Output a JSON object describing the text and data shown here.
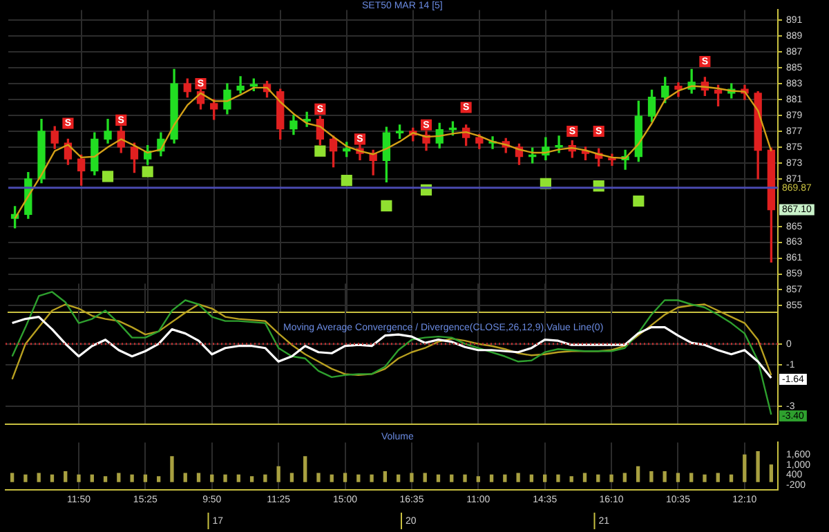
{
  "chart_data": [
    {
      "type": "candlestick",
      "title": "SET50 MAR 14 [5]",
      "categories": [
        null,
        null,
        null,
        null,
        null,
        null,
        null,
        null,
        null,
        null,
        null,
        null,
        null,
        null,
        null,
        null,
        null,
        null,
        null,
        null,
        null,
        null,
        null,
        null,
        null,
        null,
        null,
        null,
        null,
        null,
        null,
        null,
        null,
        null,
        null,
        null,
        null,
        null,
        null,
        null,
        null,
        null,
        null,
        null,
        null,
        null,
        null,
        null,
        null,
        null,
        null,
        null,
        null,
        null,
        null,
        null,
        null,
        null
      ],
      "ohlc": [
        [
          866,
          867.5,
          864.8,
          866.5
        ],
        [
          866.5,
          871.8,
          866,
          871
        ],
        [
          871,
          878.5,
          870.5,
          877
        ],
        [
          877,
          877.6,
          874.8,
          875.5
        ],
        [
          875.5,
          876,
          872.8,
          873.5
        ],
        [
          873.5,
          874,
          870.2,
          872
        ],
        [
          872,
          876.8,
          871.5,
          876
        ],
        [
          876,
          878.5,
          875.5,
          877
        ],
        [
          877,
          877.6,
          874.3,
          875
        ],
        [
          875,
          875.5,
          871.8,
          873.5
        ],
        [
          873.5,
          875.2,
          872.8,
          874.5
        ],
        [
          874.5,
          876.8,
          873.9,
          876
        ],
        [
          876,
          884.8,
          875.5,
          883
        ],
        [
          883,
          883.6,
          881.3,
          882
        ],
        [
          882,
          882.5,
          879.8,
          880.5
        ],
        [
          880.5,
          881,
          878.5,
          879.8
        ],
        [
          879.8,
          883,
          879.2,
          882.2
        ],
        [
          882.2,
          883.9,
          881.8,
          882.7
        ],
        [
          882.7,
          883.6,
          882.1,
          882.9
        ],
        [
          882.9,
          883.3,
          881.3,
          882
        ],
        [
          882,
          882.3,
          876,
          877.3
        ],
        [
          877.3,
          879,
          876.6,
          878.3
        ],
        [
          878.3,
          879.4,
          877.6,
          878.5
        ],
        [
          878.5,
          878.9,
          875.3,
          876
        ],
        [
          876,
          876.4,
          872.5,
          874.5
        ],
        [
          874.5,
          875.6,
          873.8,
          874.8
        ],
        [
          874.8,
          875.4,
          873.4,
          874.2
        ],
        [
          874.2,
          874.6,
          871.5,
          873.3
        ],
        [
          873.3,
          877.5,
          870.6,
          876.8
        ],
        [
          876.8,
          877.8,
          876.1,
          877
        ],
        [
          877,
          877.4,
          875.8,
          876.5
        ],
        [
          876.5,
          877,
          874.6,
          875.5
        ],
        [
          875.5,
          878,
          874.9,
          877.2
        ],
        [
          877.2,
          878.2,
          876.5,
          877.4
        ],
        [
          877.4,
          877.8,
          875.2,
          876.2
        ],
        [
          876.2,
          876.6,
          874.8,
          875.5
        ],
        [
          875.5,
          876.3,
          874.8,
          875.7
        ],
        [
          875.7,
          876.1,
          874.3,
          875
        ],
        [
          875,
          875.4,
          872.8,
          873.8
        ],
        [
          873.8,
          874.9,
          873,
          874
        ],
        [
          874,
          876.2,
          873.4,
          875
        ],
        [
          875,
          876.4,
          874.3,
          875.2
        ],
        [
          875.2,
          875.8,
          873.7,
          874.5
        ],
        [
          874.5,
          875,
          873.4,
          874.2
        ],
        [
          874.2,
          874.8,
          872.6,
          873.6
        ],
        [
          873.6,
          874.1,
          872.7,
          873.4
        ],
        [
          873.4,
          874.6,
          872.2,
          873.8
        ],
        [
          873.8,
          880.8,
          873.2,
          878.9
        ],
        [
          878.9,
          882.2,
          878.2,
          881.3
        ],
        [
          881.3,
          883.8,
          880.6,
          882.7
        ],
        [
          882.7,
          883.1,
          881.4,
          882.3
        ],
        [
          882.3,
          884.8,
          881.8,
          883.2
        ],
        [
          883.2,
          883.8,
          881.5,
          882.2
        ],
        [
          882.2,
          882.8,
          880.2,
          881.8
        ],
        [
          881.8,
          883,
          881.2,
          882.3
        ],
        [
          882.3,
          882.8,
          881,
          881.8
        ],
        [
          881.8,
          882,
          871,
          874.6
        ],
        [
          874.6,
          874.9,
          860.5,
          867.1
        ]
      ],
      "colors": [
        "#22dd22",
        "#22dd22",
        "#22dd22",
        "#e02020",
        "#e02020",
        "#e02020",
        "#22dd22",
        "#22dd22",
        "#e02020",
        "#e02020",
        "#22dd22",
        "#22dd22",
        "#22dd22",
        "#e02020",
        "#e02020",
        "#e02020",
        "#22dd22",
        "#22dd22",
        "#22dd22",
        "#e02020",
        "#e02020",
        "#22dd22",
        "#22dd22",
        "#e02020",
        "#e02020",
        "#22dd22",
        "#e02020",
        "#e02020",
        "#22dd22",
        "#22dd22",
        "#e02020",
        "#e02020",
        "#22dd22",
        "#22dd22",
        "#e02020",
        "#e02020",
        "#22dd22",
        "#e02020",
        "#e02020",
        "#22dd22",
        "#22dd22",
        "#22dd22",
        "#e02020",
        "#e02020",
        "#e02020",
        "#e02020",
        "#22dd22",
        "#22dd22",
        "#22dd22",
        "#22dd22",
        "#e02020",
        "#22dd22",
        "#e02020",
        "#e02020",
        "#22dd22",
        "#e02020",
        "#e02020",
        "#e02020"
      ],
      "series": [
        {
          "type": "line",
          "color": "#d4a017",
          "values": [
            866,
            868.8,
            871.5,
            874.5,
            875.3,
            873.7,
            873.8,
            875,
            876,
            875.2,
            874.3,
            874.7,
            877.8,
            880.3,
            881.8,
            880.8,
            880.8,
            881.6,
            882.5,
            882.5,
            880.7,
            879.2,
            878,
            877.6,
            876.3,
            875.1,
            874.5,
            874.1,
            874.8,
            875.7,
            876.8,
            876.3,
            876.4,
            876.7,
            876.9,
            876.4,
            875.7,
            875.3,
            874.7,
            874.3,
            874.3,
            874.7,
            874.9,
            874.6,
            874.1,
            873.7,
            873.6,
            875.4,
            878,
            881,
            882.1,
            882.7,
            882.6,
            882.4,
            882.1,
            882,
            879.6,
            874.5
          ]
        },
        {
          "type": "scatter",
          "color": "#e82020",
          "marker": "square",
          "values": [
            null,
            null,
            null,
            null,
            878,
            null,
            null,
            null,
            878.4,
            null,
            null,
            null,
            null,
            null,
            883,
            null,
            null,
            null,
            null,
            null,
            null,
            null,
            null,
            879.8,
            null,
            null,
            876,
            null,
            null,
            null,
            null,
            877.8,
            null,
            null,
            880,
            null,
            null,
            null,
            null,
            null,
            null,
            null,
            877,
            null,
            877,
            null,
            null,
            null,
            null,
            null,
            null,
            null,
            885.8,
            null,
            null,
            null,
            null,
            null
          ],
          "value_labels": [
            null,
            null,
            null,
            null,
            "S",
            null,
            null,
            null,
            "S",
            null,
            null,
            null,
            null,
            null,
            "S",
            null,
            null,
            null,
            null,
            null,
            null,
            null,
            null,
            "S",
            null,
            null,
            "S",
            null,
            null,
            null,
            null,
            "S",
            null,
            null,
            "S",
            null,
            null,
            null,
            null,
            null,
            null,
            null,
            "S",
            null,
            "S",
            null,
            null,
            null,
            null,
            null,
            null,
            null,
            "S",
            null,
            null,
            null,
            null,
            null
          ]
        },
        {
          "type": "scatter",
          "color": "#90e030",
          "marker": "square",
          "values": [
            null,
            null,
            null,
            null,
            null,
            null,
            null,
            871.3,
            null,
            null,
            871.9,
            null,
            null,
            null,
            null,
            null,
            null,
            null,
            null,
            null,
            null,
            null,
            null,
            874.5,
            null,
            870.8,
            null,
            null,
            867.6,
            null,
            null,
            869.6,
            null,
            null,
            null,
            null,
            null,
            null,
            null,
            null,
            870.4,
            null,
            null,
            null,
            870.1,
            null,
            null,
            868.2,
            null,
            null,
            null,
            null,
            null,
            null,
            null,
            null,
            null,
            null
          ]
        }
      ],
      "ylim": [
        854.2,
        892.3
      ],
      "yticks": [
        855,
        857,
        859,
        861,
        863,
        865,
        871,
        873,
        875,
        877,
        879,
        881,
        883,
        885,
        887,
        889,
        891
      ],
      "grid": true,
      "tick_labels": "y",
      "ref_lines": [
        {
          "axis": "y",
          "value": 869.87,
          "label": "869.87",
          "color": "#4a4ab0"
        }
      ],
      "annotations": [
        {
          "text": "867.10",
          "y": 867.1
        }
      ]
    },
    {
      "type": "line",
      "title": "Moving Average Convergence / Divergence(CLOSE,26,12,9),Value Line(0)",
      "categories": [
        null,
        null,
        null,
        null,
        null,
        null,
        null,
        null,
        null,
        null,
        null,
        null,
        null,
        null,
        null,
        null,
        null,
        null,
        null,
        null,
        null,
        null,
        null,
        null,
        null,
        null,
        null,
        null,
        null,
        null,
        null,
        null,
        null,
        null,
        null,
        null,
        null,
        null,
        null,
        null,
        null,
        null,
        null,
        null,
        null,
        null,
        null,
        null,
        null,
        null,
        null,
        null,
        null,
        null,
        null,
        null,
        null,
        null
      ],
      "series": [
        {
          "color": "#ffffff",
          "values": [
            1,
            1.2,
            1.3,
            0.7,
            0,
            -0.6,
            -0.1,
            0.2,
            -0.3,
            -0.6,
            -0.35,
            0,
            0.7,
            0.5,
            0.15,
            -0.5,
            -0.2,
            -0.1,
            -0.1,
            -0.2,
            -0.85,
            -0.6,
            -0.1,
            -0.4,
            -0.45,
            -0.1,
            -0.05,
            -0.1,
            0.4,
            0.45,
            0.35,
            0.05,
            0.2,
            0.1,
            -0.15,
            -0.3,
            -0.3,
            -0.35,
            -0.4,
            -0.2,
            0.2,
            0.15,
            -0.05,
            -0.05,
            -0.05,
            -0.05,
            -0.05,
            0.5,
            0.8,
            0.8,
            0.4,
            0.05,
            -0.05,
            -0.3,
            -0.5,
            -0.3,
            -0.85,
            -1.64
          ],
          "value_labels": [
            null,
            null,
            null,
            null,
            null,
            null,
            null,
            null,
            null,
            null,
            null,
            null,
            null,
            null,
            null,
            null,
            null,
            null,
            null,
            null,
            null,
            null,
            null,
            null,
            null,
            null,
            null,
            null,
            null,
            null,
            null,
            null,
            null,
            null,
            null,
            null,
            null,
            null,
            null,
            null,
            null,
            null,
            null,
            null,
            null,
            null,
            null,
            null,
            null,
            null,
            null,
            null,
            null,
            null,
            null,
            null,
            null,
            "-1.64"
          ]
        },
        {
          "color": "#2ea02e",
          "values": [
            -0.6,
            0.8,
            2.3,
            2.5,
            2,
            1,
            1.2,
            1.6,
            1,
            0.3,
            0.3,
            0.6,
            1.6,
            2.1,
            1.9,
            1.3,
            1.1,
            1.1,
            1.05,
            1,
            -0.2,
            -0.6,
            -0.7,
            -1.3,
            -1.6,
            -1.5,
            -1.45,
            -1.45,
            -1.1,
            -0.3,
            0.2,
            0.3,
            0.35,
            0.3,
            0,
            -0.2,
            -0.4,
            -0.6,
            -0.85,
            -0.8,
            -0.4,
            -0.25,
            -0.3,
            -0.35,
            -0.35,
            -0.35,
            -0.2,
            0.5,
            1.4,
            2.1,
            2.1,
            1.9,
            1.75,
            1.4,
            1,
            0.5,
            -0.8,
            -3.4
          ],
          "value_labels": [
            null,
            null,
            null,
            null,
            null,
            null,
            null,
            null,
            null,
            null,
            null,
            null,
            null,
            null,
            null,
            null,
            null,
            null,
            null,
            null,
            null,
            null,
            null,
            null,
            null,
            null,
            null,
            null,
            null,
            null,
            null,
            null,
            null,
            null,
            null,
            null,
            null,
            null,
            null,
            null,
            null,
            null,
            null,
            null,
            null,
            null,
            null,
            null,
            null,
            null,
            null,
            null,
            null,
            null,
            null,
            null,
            null,
            "-3.40"
          ]
        },
        {
          "color": "#b8a020",
          "values": [
            -1.7,
            0,
            0.8,
            1.6,
            1.9,
            1.7,
            1.35,
            1.2,
            1.1,
            0.8,
            0.45,
            0.6,
            1.05,
            1.5,
            1.9,
            1.7,
            1.3,
            1.2,
            1.15,
            1.1,
            0.5,
            -0.05,
            -0.5,
            -0.85,
            -1.2,
            -1.45,
            -1.5,
            -1.45,
            -1.2,
            -0.7,
            -0.4,
            -0.2,
            0.1,
            0.25,
            0.15,
            0,
            -0.1,
            -0.25,
            -0.45,
            -0.55,
            -0.5,
            -0.4,
            -0.35,
            -0.35,
            -0.35,
            -0.3,
            -0.1,
            0.4,
            0.9,
            1.4,
            1.75,
            1.85,
            1.9,
            1.6,
            1.3,
            1,
            0.2,
            -1.5
          ]
        }
      ],
      "ylim": [
        -3.85,
        2.9
      ],
      "yticks": [
        0,
        -1,
        -3
      ],
      "grid": true,
      "tick_labels": "y",
      "ref_lines": [
        {
          "axis": "y",
          "value": 0,
          "color": "#c03030",
          "line_style": "dotted"
        }
      ]
    },
    {
      "type": "bar",
      "title": "Volume",
      "categories": [
        null,
        null,
        null,
        null,
        null,
        "11:50",
        null,
        null,
        null,
        null,
        "15:25",
        null,
        null,
        null,
        null,
        "9:50",
        null,
        null,
        null,
        null,
        "11:25",
        null,
        null,
        null,
        null,
        "15:00",
        null,
        null,
        null,
        null,
        "16:35",
        null,
        null,
        null,
        null,
        "11:00",
        null,
        null,
        null,
        null,
        "14:35",
        null,
        null,
        null,
        null,
        "16:10",
        null,
        null,
        null,
        null,
        "10:35",
        null,
        null,
        null,
        null,
        "12:10",
        null,
        null
      ],
      "values": [
        500,
        400,
        500,
        400,
        600,
        400,
        400,
        300,
        500,
        400,
        400,
        300,
        1500,
        500,
        500,
        400,
        400,
        400,
        300,
        400,
        900,
        500,
        1500,
        500,
        400,
        500,
        400,
        400,
        600,
        400,
        500,
        500,
        400,
        400,
        400,
        300,
        400,
        400,
        500,
        400,
        400,
        400,
        300,
        500,
        400,
        400,
        500,
        900,
        600,
        600,
        500,
        500,
        400,
        500,
        400,
        1600,
        1800,
        1000
      ],
      "color": "#a8a040",
      "ylim": [
        -500,
        2350
      ],
      "yticks": [
        {
          "value": 1600,
          "label": "1,600"
        },
        {
          "value": 1000,
          "label": "1,000"
        },
        400,
        -200
      ],
      "grid": "x",
      "annotations": [
        "17",
        "20",
        "21"
      ]
    }
  ]
}
